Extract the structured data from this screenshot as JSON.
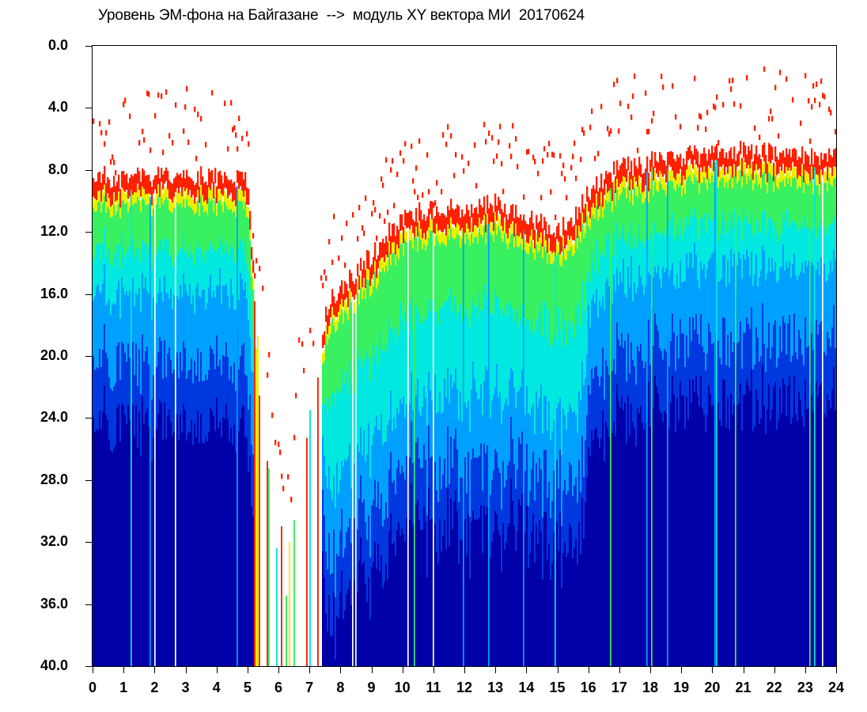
{
  "chart_data": {
    "type": "heatmap",
    "title": "Уровень ЭМ-фона на Байгазане  -->  модуль XY вектора МИ  20170624",
    "xlabel": "",
    "ylabel": "",
    "x_ticks": [
      "0",
      "1",
      "2",
      "3",
      "4",
      "5",
      "6",
      "7",
      "8",
      "9",
      "10",
      "11",
      "12",
      "13",
      "14",
      "15",
      "16",
      "17",
      "18",
      "19",
      "20",
      "21",
      "22",
      "23",
      "24"
    ],
    "y_ticks": [
      "0.0",
      "4.0",
      "8.0",
      "12.0",
      "16.0",
      "20.0",
      "24.0",
      "28.0",
      "32.0",
      "36.0",
      "40.0"
    ],
    "xlim": [
      0,
      24
    ],
    "ylim": [
      40,
      0
    ],
    "y_axis_inverted": true,
    "grid": false,
    "colormap": [
      "#0000a8",
      "#0038e0",
      "#00a0ff",
      "#00e8e0",
      "#38f060",
      "#e8f000",
      "#ff2000"
    ],
    "background": "#ffffff",
    "envelope_top_level": [
      {
        "hour": 0.0,
        "top": 8.3
      },
      {
        "hour": 1.0,
        "top": 8.6
      },
      {
        "hour": 2.0,
        "top": 8.4
      },
      {
        "hour": 3.0,
        "top": 8.5
      },
      {
        "hour": 4.0,
        "top": 8.4
      },
      {
        "hour": 5.0,
        "top": 8.8
      },
      {
        "hour": 5.3,
        "top": 17.5
      },
      {
        "hour": 5.7,
        "top": 25.0
      },
      {
        "hour": 6.0,
        "top": 30.0
      },
      {
        "hour": 6.3,
        "top": 33.0
      },
      {
        "hour": 6.6,
        "top": 24.0
      },
      {
        "hour": 7.0,
        "top": 24.0
      },
      {
        "hour": 7.3,
        "top": 20.5
      },
      {
        "hour": 7.6,
        "top": 16.5
      },
      {
        "hour": 8.0,
        "top": 15.8
      },
      {
        "hour": 9.0,
        "top": 13.5
      },
      {
        "hour": 10.0,
        "top": 11.0
      },
      {
        "hour": 11.0,
        "top": 10.5
      },
      {
        "hour": 12.0,
        "top": 10.5
      },
      {
        "hour": 13.0,
        "top": 10.2
      },
      {
        "hour": 14.0,
        "top": 11.0
      },
      {
        "hour": 15.0,
        "top": 12.0
      },
      {
        "hour": 15.5,
        "top": 11.0
      },
      {
        "hour": 16.0,
        "top": 9.5
      },
      {
        "hour": 16.5,
        "top": 8.5
      },
      {
        "hour": 17.0,
        "top": 7.9
      },
      {
        "hour": 18.0,
        "top": 7.5
      },
      {
        "hour": 19.0,
        "top": 7.2
      },
      {
        "hour": 20.0,
        "top": 6.8
      },
      {
        "hour": 21.0,
        "top": 6.7
      },
      {
        "hour": 22.0,
        "top": 7.0
      },
      {
        "hour": 23.0,
        "top": 7.0
      },
      {
        "hour": 24.0,
        "top": 7.2
      }
    ]
  }
}
